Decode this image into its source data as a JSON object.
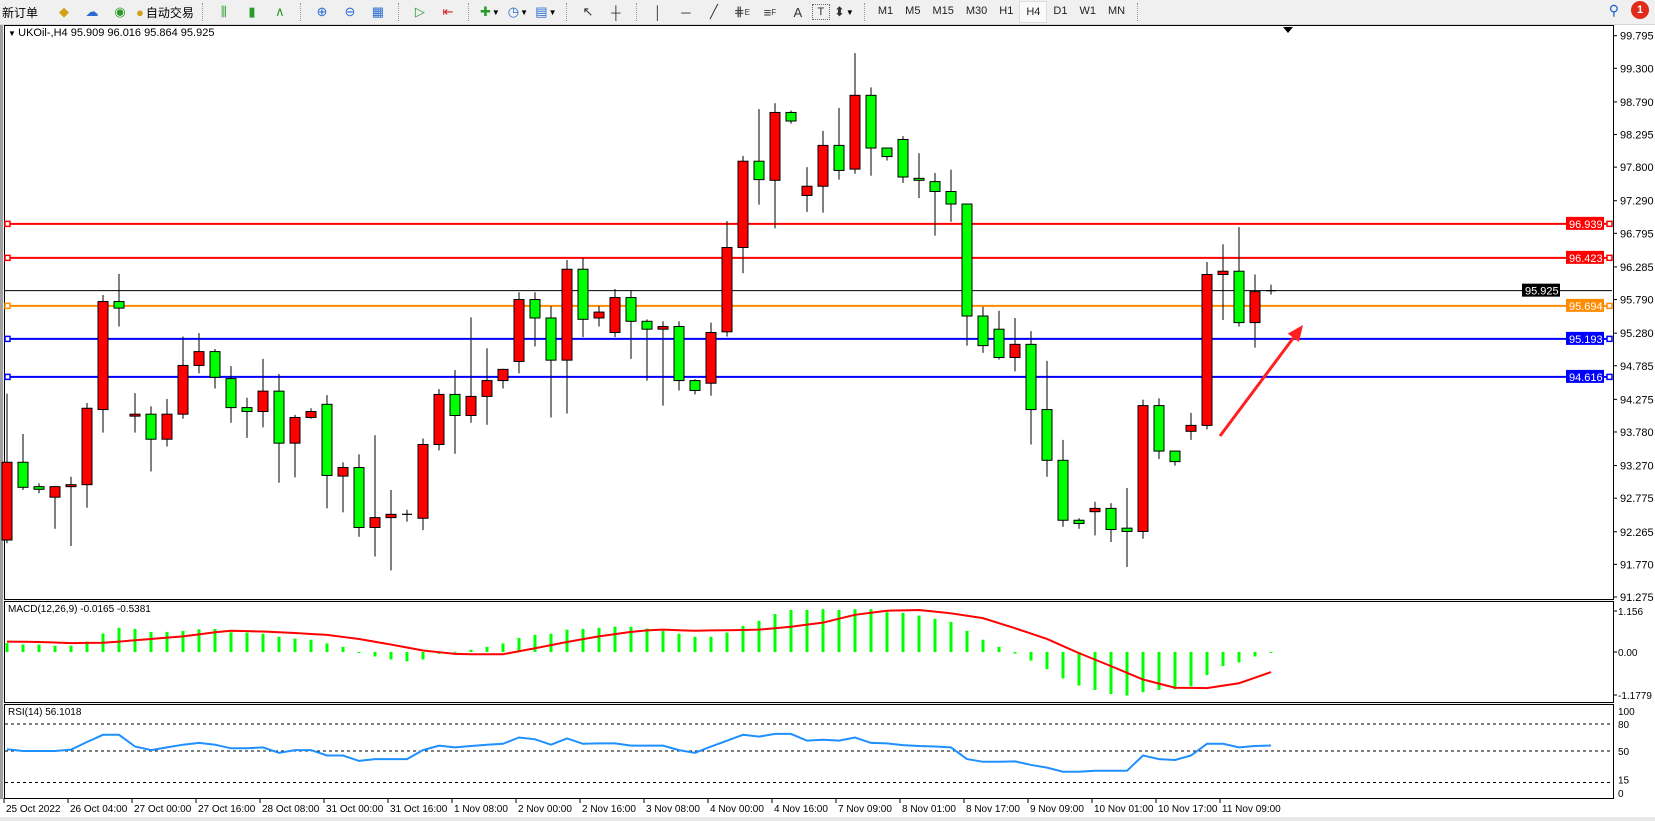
{
  "toolbar": {
    "new_order_label": "新订单",
    "auto_trading_label": "自动交易",
    "icons": [
      "gold-bars-icon",
      "market-watch-icon",
      "signals-icon",
      "auto-trading-icon",
      "bar-chart-icon",
      "candlestick-icon",
      "line-chart-icon",
      "zoom-in-icon",
      "zoom-out-icon",
      "tile-windows-icon",
      "auto-scroll-icon",
      "chart-shift-icon",
      "indicators-icon",
      "periods-icon",
      "templates-icon",
      "cursor-icon",
      "crosshair-icon",
      "vertical-line-icon",
      "horizontal-line-icon",
      "trendline-icon",
      "equidistant-channel-icon",
      "fibonacci-icon",
      "text-icon",
      "text-label-icon",
      "arrows-icon",
      "search-icon",
      "notification-icon"
    ],
    "letters": {
      "channel": "E",
      "fibo": "F",
      "text": "A",
      "label": "T"
    },
    "timeframes": [
      "M1",
      "M5",
      "M15",
      "M30",
      "H1",
      "H4",
      "D1",
      "W1",
      "MN"
    ],
    "active_timeframe": "H4",
    "notification_count": "1"
  },
  "chart": {
    "header": "UKOil-,H4  95.909 96.016 95.864 95.925",
    "macd_label": "MACD(12,26,9) -0.0165 -0.5381",
    "rsi_label": "RSI(14) 56.1018"
  },
  "colors": {
    "bull_candle": "#ff0000",
    "bear_candle": "#00ff00",
    "macd_histogram": "#00ff00",
    "macd_signal": "#ff0000",
    "rsi_line": "#1e90ff",
    "arrow": "#ff2020"
  },
  "chart_data": {
    "type": "candlestick",
    "symbol": "UKOil-",
    "timeframe": "H4",
    "candle_fields": [
      "open",
      "high",
      "low",
      "close"
    ],
    "candles": [
      [
        92.14,
        94.36,
        92.09,
        93.32
      ],
      [
        93.32,
        93.75,
        92.9,
        92.94
      ],
      [
        92.95,
        93.0,
        92.85,
        92.91
      ],
      [
        92.79,
        92.96,
        92.31,
        92.95
      ],
      [
        92.95,
        93.1,
        92.05,
        92.98
      ],
      [
        92.98,
        94.22,
        92.63,
        94.14
      ],
      [
        94.12,
        95.86,
        93.77,
        95.76
      ],
      [
        95.76,
        96.18,
        95.38,
        95.66
      ],
      [
        94.02,
        94.37,
        93.77,
        94.05
      ],
      [
        94.05,
        94.17,
        93.18,
        93.67
      ],
      [
        93.67,
        94.28,
        93.56,
        94.05
      ],
      [
        94.05,
        95.23,
        93.98,
        94.79
      ],
      [
        94.79,
        95.28,
        94.67,
        95.0
      ],
      [
        95.0,
        95.04,
        94.44,
        94.61
      ],
      [
        94.59,
        94.78,
        93.92,
        94.15
      ],
      [
        94.15,
        94.3,
        93.69,
        94.09
      ],
      [
        94.09,
        94.89,
        93.85,
        94.4
      ],
      [
        94.4,
        94.66,
        93.01,
        93.61
      ],
      [
        93.61,
        94.04,
        93.09,
        94.0
      ],
      [
        94.0,
        94.14,
        93.98,
        94.09
      ],
      [
        94.2,
        94.34,
        92.62,
        93.12
      ],
      [
        93.11,
        93.32,
        92.56,
        93.24
      ],
      [
        93.24,
        93.44,
        92.19,
        92.33
      ],
      [
        92.33,
        93.73,
        91.89,
        92.48
      ],
      [
        92.48,
        92.9,
        91.68,
        92.53
      ],
      [
        92.53,
        92.6,
        92.42,
        92.53
      ],
      [
        92.47,
        93.68,
        92.29,
        93.59
      ],
      [
        93.59,
        94.43,
        93.5,
        94.35
      ],
      [
        94.35,
        94.72,
        93.45,
        94.03
      ],
      [
        94.03,
        95.52,
        93.92,
        94.32
      ],
      [
        94.32,
        95.05,
        93.89,
        94.56
      ],
      [
        94.56,
        94.74,
        94.44,
        94.73
      ],
      [
        94.85,
        95.9,
        94.67,
        95.79
      ],
      [
        95.79,
        95.9,
        95.08,
        95.51
      ],
      [
        95.51,
        95.69,
        94.0,
        94.87
      ],
      [
        94.87,
        96.39,
        94.06,
        96.25
      ],
      [
        96.25,
        96.42,
        95.22,
        95.49
      ],
      [
        95.51,
        95.69,
        95.38,
        95.6
      ],
      [
        95.29,
        95.95,
        95.22,
        95.82
      ],
      [
        95.82,
        95.92,
        94.89,
        95.46
      ],
      [
        95.46,
        95.49,
        94.56,
        95.34
      ],
      [
        95.34,
        95.46,
        94.18,
        95.38
      ],
      [
        95.38,
        95.46,
        94.41,
        94.56
      ],
      [
        94.56,
        94.58,
        94.35,
        94.41
      ],
      [
        94.52,
        95.44,
        94.33,
        95.29
      ],
      [
        95.3,
        96.98,
        95.23,
        96.58
      ],
      [
        96.58,
        97.97,
        96.19,
        97.89
      ],
      [
        97.89,
        98.68,
        97.23,
        97.61
      ],
      [
        97.6,
        98.77,
        96.87,
        98.63
      ],
      [
        98.63,
        98.66,
        98.46,
        98.5
      ],
      [
        97.37,
        97.8,
        97.12,
        97.51
      ],
      [
        97.51,
        98.35,
        97.11,
        98.13
      ],
      [
        98.13,
        98.7,
        97.61,
        97.75
      ],
      [
        97.77,
        99.53,
        97.7,
        98.89
      ],
      [
        98.89,
        99.01,
        97.67,
        98.09
      ],
      [
        98.09,
        98.09,
        97.9,
        97.96
      ],
      [
        98.22,
        98.27,
        97.56,
        97.65
      ],
      [
        97.63,
        98.01,
        97.33,
        97.6
      ],
      [
        97.58,
        97.71,
        96.76,
        97.43
      ],
      [
        97.43,
        97.76,
        96.97,
        97.24
      ],
      [
        97.24,
        97.24,
        95.09,
        95.54
      ],
      [
        95.54,
        95.68,
        94.98,
        95.09
      ],
      [
        95.34,
        95.62,
        94.88,
        94.91
      ],
      [
        94.91,
        95.51,
        94.7,
        95.11
      ],
      [
        95.11,
        95.31,
        93.59,
        94.12
      ],
      [
        94.12,
        94.86,
        93.1,
        93.35
      ],
      [
        93.35,
        93.66,
        92.34,
        92.44
      ],
      [
        92.44,
        92.47,
        92.31,
        92.39
      ],
      [
        92.57,
        92.72,
        92.21,
        92.62
      ],
      [
        92.62,
        92.7,
        92.11,
        92.3
      ],
      [
        92.32,
        92.93,
        91.73,
        92.27
      ],
      [
        92.27,
        94.27,
        92.16,
        94.18
      ],
      [
        94.18,
        94.29,
        93.37,
        93.49
      ],
      [
        93.49,
        93.49,
        93.27,
        93.33
      ],
      [
        93.79,
        94.07,
        93.66,
        93.88
      ],
      [
        93.88,
        96.36,
        93.82,
        96.17
      ],
      [
        96.17,
        96.63,
        95.48,
        96.22
      ],
      [
        96.22,
        96.89,
        95.38,
        95.44
      ],
      [
        95.44,
        96.17,
        95.06,
        95.91
      ],
      [
        95.909,
        96.016,
        95.864,
        95.925
      ]
    ],
    "price_ticks": [
      "99.795",
      "99.300",
      "98.790",
      "98.295",
      "97.800",
      "97.290",
      "96.795",
      "96.285",
      "95.790",
      "95.280",
      "94.785",
      "94.275",
      "93.780",
      "93.270",
      "92.775",
      "92.265",
      "91.770",
      "91.275"
    ],
    "ylim": [
      91.275,
      99.795
    ],
    "levels": [
      {
        "value": "96.939",
        "color": "#ff0000"
      },
      {
        "value": "96.423",
        "color": "#ff0000"
      },
      {
        "value": "95.694",
        "color": "#ff8c00"
      },
      {
        "value": "95.193",
        "color": "#0000ff"
      },
      {
        "value": "94.616",
        "color": "#0000ff"
      }
    ],
    "bid": {
      "value": "95.925",
      "color": "#000000"
    },
    "time_labels": [
      "25 Oct 2022",
      "26 Oct 04:00",
      "27 Oct 00:00",
      "27 Oct 16:00",
      "28 Oct 08:00",
      "31 Oct 00:00",
      "31 Oct 16:00",
      "1 Nov 08:00",
      "2 Nov 00:00",
      "2 Nov 16:00",
      "3 Nov 08:00",
      "4 Nov 00:00",
      "4 Nov 16:00",
      "7 Nov 09:00",
      "8 Nov 01:00",
      "8 Nov 17:00",
      "9 Nov 09:00",
      "10 Nov 01:00",
      "10 Nov 17:00",
      "11 Nov 09:00"
    ],
    "time_label_every_n_candles": 4,
    "annotation": {
      "type": "arrow",
      "direction": "up-right",
      "color": "#ff2020"
    },
    "macd": {
      "params": "12,26,9",
      "ylim": [
        -1.1779,
        1.156
      ],
      "axis_ticks": [
        "1.156",
        "0.00",
        "-1.1779"
      ],
      "main": [
        0.24,
        0.2,
        0.2,
        0.17,
        0.17,
        0.28,
        0.5,
        0.65,
        0.62,
        0.54,
        0.54,
        0.57,
        0.61,
        0.62,
        0.53,
        0.52,
        0.49,
        0.41,
        0.36,
        0.33,
        0.23,
        0.14,
        -0.03,
        -0.12,
        -0.2,
        -0.25,
        -0.2,
        -0.05,
        0.01,
        0.06,
        0.14,
        0.23,
        0.38,
        0.46,
        0.49,
        0.6,
        0.62,
        0.65,
        0.68,
        0.68,
        0.63,
        0.57,
        0.49,
        0.41,
        0.41,
        0.52,
        0.7,
        0.84,
        1.02,
        1.13,
        1.13,
        1.15,
        1.13,
        1.15,
        1.15,
        1.07,
        1.05,
        0.98,
        0.89,
        0.81,
        0.57,
        0.33,
        0.14,
        -0.04,
        -0.23,
        -0.46,
        -0.71,
        -0.9,
        -1.02,
        -1.13,
        -1.17,
        -1.08,
        -1.02,
        -1.0,
        -0.92,
        -0.62,
        -0.38,
        -0.28,
        -0.12,
        -0.0165
      ],
      "signal": [
        0.28,
        0.275,
        0.27,
        0.255,
        0.24,
        0.245,
        0.25,
        0.28,
        0.315,
        0.35,
        0.385,
        0.42,
        0.475,
        0.53,
        0.57,
        0.56,
        0.55,
        0.53,
        0.51,
        0.485,
        0.46,
        0.405,
        0.35,
        0.275,
        0.2,
        0.12,
        0.04,
        -0.005,
        -0.05,
        -0.06,
        -0.06,
        -0.06,
        0.02,
        0.1,
        0.185,
        0.27,
        0.345,
        0.42,
        0.48,
        0.54,
        0.58,
        0.6,
        0.585,
        0.57,
        0.58,
        0.585,
        0.59,
        0.6,
        0.64,
        0.68,
        0.735,
        0.79,
        0.895,
        1.0,
        1.055,
        1.11,
        1.12,
        1.13,
        1.085,
        1.04,
        0.975,
        0.91,
        0.775,
        0.64,
        0.495,
        0.35,
        0.16,
        -0.03,
        -0.205,
        -0.38,
        -0.56,
        -0.74,
        -0.85,
        -0.96,
        -0.965,
        -0.97,
        -0.905,
        -0.84,
        -0.69,
        -0.5381
      ]
    },
    "rsi": {
      "period": 14,
      "ylim": [
        0,
        100
      ],
      "levels": [
        80,
        50,
        15
      ],
      "axis_ticks": [
        "100",
        "80",
        "50",
        "15",
        "0"
      ],
      "values": [
        52,
        50,
        50,
        50,
        51.5,
        60,
        68,
        68,
        55,
        51,
        54,
        57,
        59,
        57,
        53,
        53,
        54,
        48,
        51,
        51,
        45,
        45,
        39,
        41,
        41,
        41,
        51,
        56,
        54,
        55.5,
        57,
        58,
        65,
        63,
        57,
        64,
        58,
        58.5,
        58.5,
        56,
        56,
        56,
        51,
        48,
        55,
        61.5,
        68,
        66,
        69,
        69,
        61.5,
        62.5,
        61.5,
        65,
        59,
        58.5,
        56.5,
        55.5,
        55,
        54,
        41,
        38,
        38,
        38.5,
        34.5,
        31.5,
        27,
        27,
        28,
        28,
        28,
        45,
        41,
        40,
        45,
        58,
        58,
        54,
        55.5,
        56.1018
      ]
    }
  }
}
